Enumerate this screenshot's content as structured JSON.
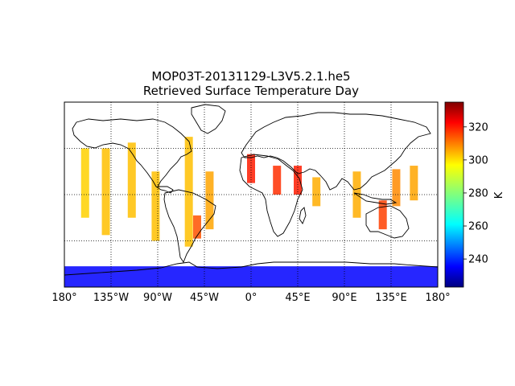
{
  "title_line1": "MOP03T-20131129-L3V5.2.1.he5",
  "title_line2": "Retrieved Surface Temperature Day",
  "map": {
    "projection": "cylindrical",
    "lon_range": [
      -180,
      180
    ],
    "lat_range": [
      -80,
      80
    ],
    "gridlines": "dotted",
    "meridian_ticks": [
      {
        "lon": -180,
        "label": "180°"
      },
      {
        "lon": -135,
        "label": "135°W"
      },
      {
        "lon": -90,
        "label": "90°W"
      },
      {
        "lon": -45,
        "label": "45°W"
      },
      {
        "lon": 0,
        "label": "0°"
      },
      {
        "lon": 45,
        "label": "45°E"
      },
      {
        "lon": 90,
        "label": "90°E"
      },
      {
        "lon": 135,
        "label": "135°E"
      },
      {
        "lon": 180,
        "label": "180°"
      }
    ],
    "parallels": [
      -40,
      0,
      40
    ]
  },
  "colorbar": {
    "label": "K",
    "colormap": "jet",
    "range": [
      223,
      335
    ],
    "ticks": [
      {
        "value": 240,
        "label": "240"
      },
      {
        "value": 260,
        "label": "260"
      },
      {
        "value": 280,
        "label": "280"
      },
      {
        "value": 300,
        "label": "300"
      },
      {
        "value": 320,
        "label": "320"
      }
    ]
  },
  "chart_data": {
    "type": "heatmap",
    "title": "MOP03T-20131129-L3V5.2.1.he5\nRetrieved Surface Temperature Day",
    "x": "longitude",
    "y": "latitude",
    "value_unit": "K",
    "clim": [
      223,
      335
    ],
    "swaths": [
      {
        "lon": -160,
        "lat": [
          -20,
          40
        ],
        "value": 298
      },
      {
        "lon": -140,
        "lat": [
          -35,
          40
        ],
        "value": 300
      },
      {
        "lon": -115,
        "lat": [
          -20,
          45
        ],
        "value": 300
      },
      {
        "lon": -92,
        "lat": [
          -40,
          20
        ],
        "value": 300
      },
      {
        "lon": -60,
        "lat": [
          -45,
          50
        ],
        "value": 300
      },
      {
        "lon": -52,
        "lat": [
          -38,
          -18
        ],
        "value": 312
      },
      {
        "lon": -40,
        "lat": [
          -30,
          20
        ],
        "value": 303
      },
      {
        "lon": 0,
        "lat": [
          10,
          35
        ],
        "value": 318
      },
      {
        "lon": 25,
        "lat": [
          0,
          25
        ],
        "value": 316
      },
      {
        "lon": 45,
        "lat": [
          0,
          25
        ],
        "value": 318
      },
      {
        "lon": 63,
        "lat": [
          -10,
          15
        ],
        "value": 302
      },
      {
        "lon": 102,
        "lat": [
          -20,
          20
        ],
        "value": 302
      },
      {
        "lon": 127,
        "lat": [
          -30,
          -5
        ],
        "value": 314
      },
      {
        "lon": 140,
        "lat": [
          -10,
          22
        ],
        "value": 306
      },
      {
        "lon": 157,
        "lat": [
          -5,
          25
        ],
        "value": 303
      }
    ],
    "antarctic_band": {
      "lat": [
        -80,
        -62
      ],
      "value": 237
    }
  }
}
